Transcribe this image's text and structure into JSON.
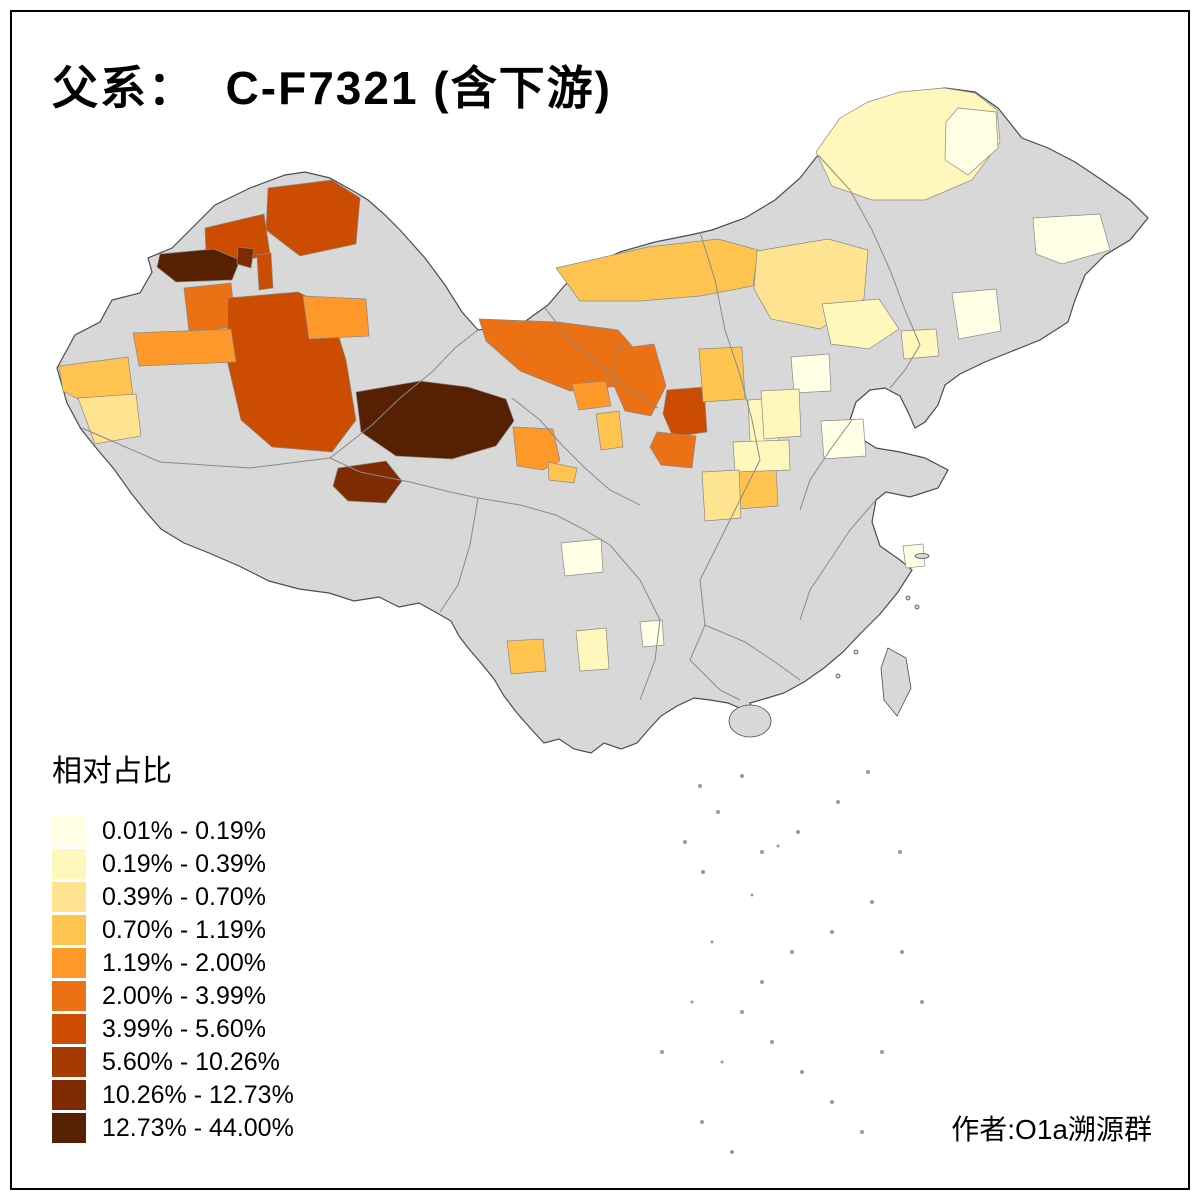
{
  "header": {
    "title": "父系：  C-F7321 (含下游)"
  },
  "legend": {
    "title": "相对占比",
    "items": [
      {
        "label": "0.01% - 0.19%",
        "color": "#FFFFE5"
      },
      {
        "label": "0.19% - 0.39%",
        "color": "#FFF7BC"
      },
      {
        "label": "0.39% - 0.70%",
        "color": "#FEE391"
      },
      {
        "label": "0.70% - 1.19%",
        "color": "#FEC44F"
      },
      {
        "label": "1.19% - 2.00%",
        "color": "#FE9929"
      },
      {
        "label": "2.00% - 3.99%",
        "color": "#EC7014"
      },
      {
        "label": "3.99% - 5.60%",
        "color": "#CC4C02"
      },
      {
        "label": "5.60% - 10.26%",
        "color": "#A63A03"
      },
      {
        "label": "10.26% - 12.73%",
        "color": "#7E2B04"
      },
      {
        "label": "12.73% - 44.00%",
        "color": "#572003"
      }
    ]
  },
  "map": {
    "base_color": "#D8D8D8",
    "outline_color": "#4D4D4D",
    "province_border_color": "#8A8A8A"
  },
  "footer": {
    "attribution": "作者:O1a溯源群"
  }
}
